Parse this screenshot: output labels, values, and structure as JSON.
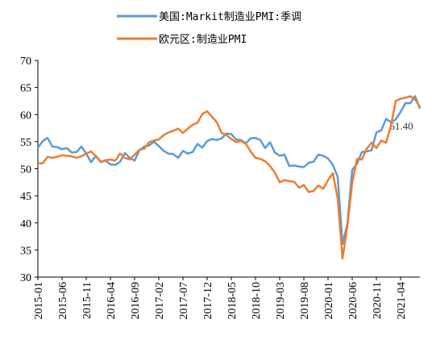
{
  "chart_data": {
    "type": "line",
    "categories": [
      "2015-01",
      null,
      null,
      null,
      null,
      "2015-06",
      null,
      null,
      null,
      null,
      "2015-11",
      null,
      null,
      null,
      null,
      "2016-04",
      null,
      null,
      null,
      null,
      "2016-09",
      null,
      null,
      null,
      null,
      "2017-02",
      null,
      null,
      null,
      null,
      "2017-07",
      null,
      null,
      null,
      null,
      "2017-12",
      null,
      null,
      null,
      null,
      "2018-05",
      null,
      null,
      null,
      null,
      "2018-10",
      null,
      null,
      null,
      null,
      "2019-03",
      null,
      null,
      null,
      null,
      "2019-08",
      null,
      null,
      null,
      null,
      "2020-01",
      null,
      null,
      null,
      null,
      "2020-06",
      null,
      null,
      null,
      null,
      "2020-11",
      null,
      null,
      null,
      null,
      "2021-04",
      null,
      null,
      null,
      null
    ],
    "series": [
      {
        "name": "美国:Markit制造业PMI:季调",
        "color": "#5b9bd5",
        "values": [
          53.9,
          55.1,
          55.7,
          54.1,
          54.0,
          53.6,
          53.8,
          53.0,
          53.1,
          54.1,
          52.8,
          51.2,
          52.4,
          51.3,
          51.5,
          50.8,
          50.7,
          51.3,
          52.9,
          52.0,
          51.5,
          53.4,
          54.1,
          54.3,
          55.0,
          54.2,
          53.3,
          52.8,
          52.7,
          52.0,
          53.3,
          52.8,
          53.1,
          54.6,
          53.9,
          55.1,
          55.5,
          55.3,
          55.6,
          56.5,
          56.4,
          55.4,
          55.3,
          54.7,
          55.6,
          55.7,
          55.3,
          53.8,
          54.9,
          53.0,
          52.4,
          52.6,
          50.5,
          50.6,
          50.4,
          50.3,
          51.1,
          51.3,
          52.6,
          52.4,
          51.9,
          50.7,
          48.5,
          36.1,
          39.8,
          49.8,
          50.9,
          53.1,
          53.2,
          53.4,
          56.7,
          57.1,
          59.2,
          58.6,
          59.1,
          60.5,
          62.1,
          62.1,
          63.4,
          61.1
        ]
      },
      {
        "name": "欧元区:制造业PMI",
        "color": "#ed7d31",
        "values": [
          51.0,
          51.0,
          52.2,
          52.0,
          52.2,
          52.5,
          52.4,
          52.3,
          52.0,
          52.3,
          52.8,
          53.2,
          52.3,
          51.2,
          51.6,
          51.7,
          51.5,
          52.8,
          52.0,
          51.7,
          52.6,
          53.5,
          53.7,
          54.9,
          55.2,
          55.4,
          56.2,
          56.7,
          57.0,
          57.4,
          56.6,
          57.4,
          58.1,
          58.5,
          60.1,
          60.6,
          59.6,
          58.6,
          56.6,
          56.2,
          55.5,
          54.9,
          55.1,
          54.6,
          53.2,
          52.0,
          51.8,
          51.4,
          50.5,
          49.3,
          47.5,
          47.9,
          47.7,
          47.6,
          46.5,
          47.0,
          45.7,
          45.9,
          46.9,
          46.3,
          47.9,
          49.2,
          44.5,
          33.4,
          39.4,
          47.4,
          51.8,
          51.7,
          53.7,
          54.8,
          53.8,
          55.2,
          54.8,
          57.9,
          62.5,
          62.9,
          63.1,
          63.4,
          62.8,
          61.4
        ]
      }
    ],
    "annotation": "61.40",
    "ylim": [
      30,
      70
    ],
    "yticks": [
      30,
      35,
      40,
      45,
      50,
      55,
      60,
      65,
      70
    ]
  }
}
